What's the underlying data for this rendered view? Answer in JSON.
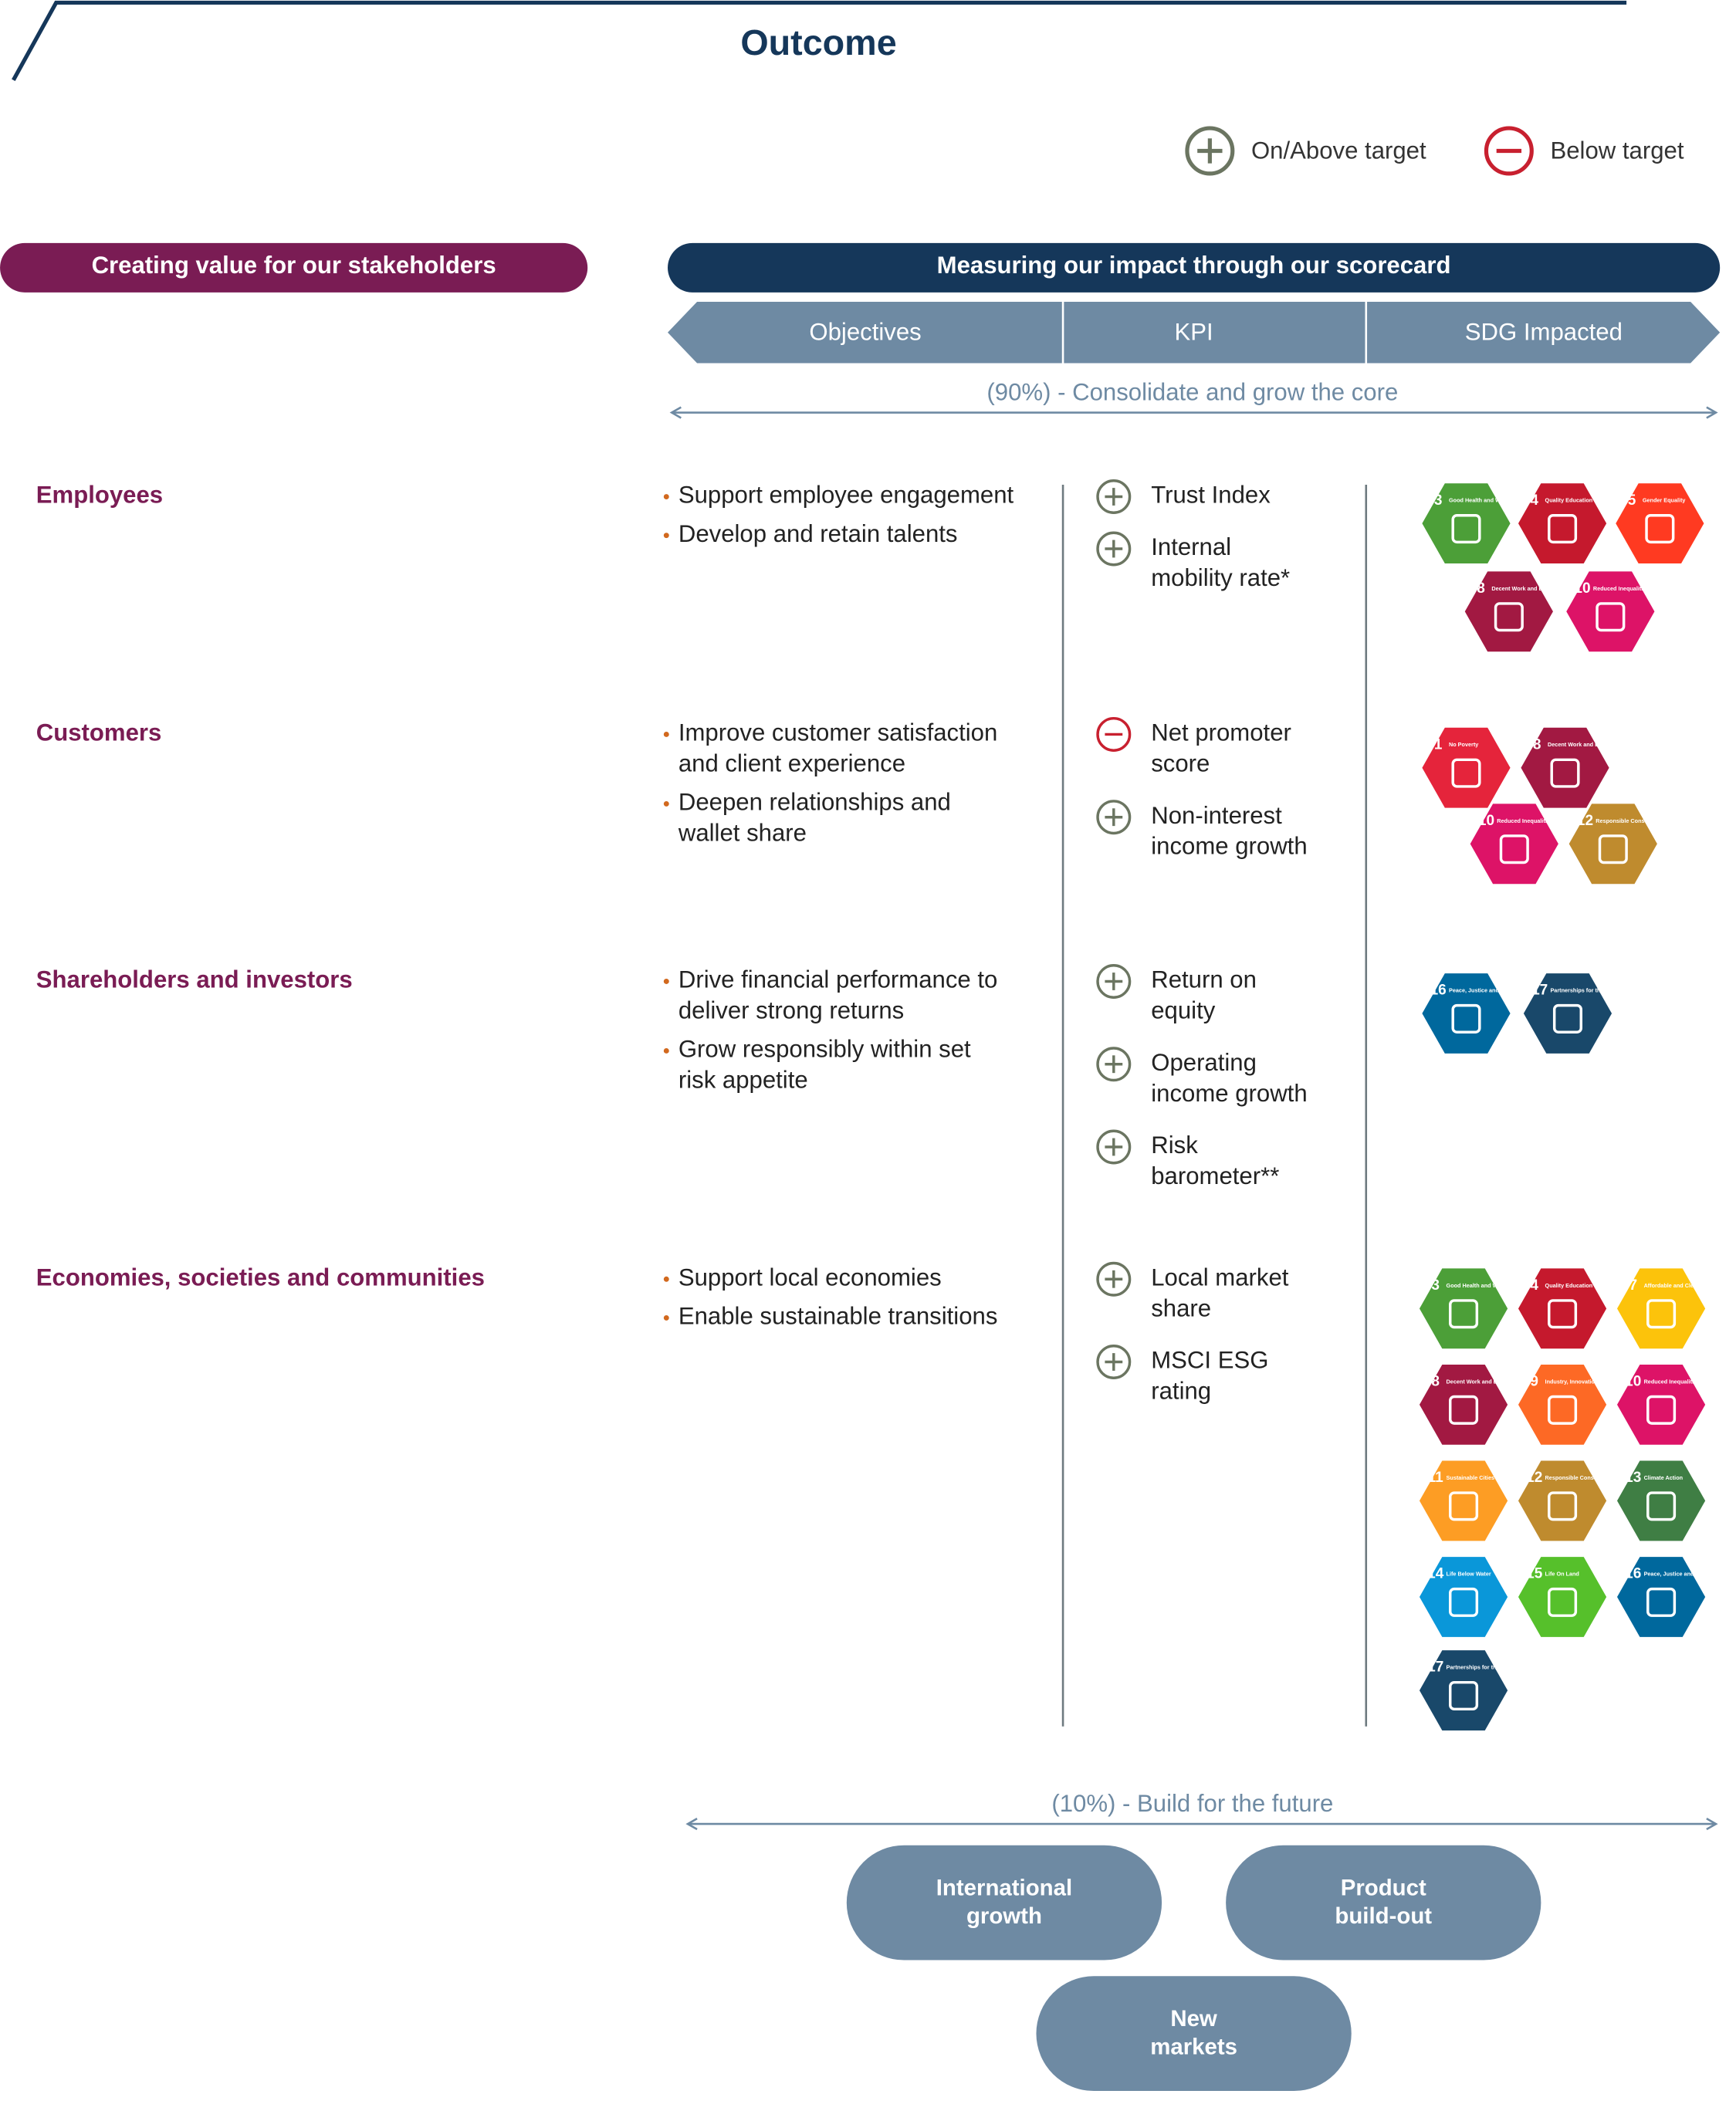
{
  "title": "Outcome",
  "legend": [
    {
      "label": "On/Above target",
      "status": "plus"
    },
    {
      "label": "Below target",
      "status": "minus"
    }
  ],
  "left_header": "Creating value for our stakeholders",
  "right_header": "Measuring our impact through our scorecard",
  "columns": [
    "Objectives",
    "KPI",
    "SDG Impacted"
  ],
  "core_label": "(90%) - Consolidate and grow the core",
  "stakeholders": [
    {
      "name": "Employees",
      "objectives": [
        [
          "Support employee engagement"
        ],
        [
          "Develop and retain talents"
        ]
      ],
      "kpis": [
        {
          "lines": [
            "Trust Index"
          ],
          "status": "plus"
        },
        {
          "lines": [
            "Internal",
            "mobility rate*"
          ],
          "status": "plus"
        }
      ],
      "sdgs": [
        {
          "number": 3,
          "name": "Good Health and Well-being",
          "color": "#4c9f38"
        },
        {
          "number": 4,
          "name": "Quality Education",
          "color": "#c5192d"
        },
        {
          "number": 5,
          "name": "Gender Equality",
          "color": "#ff3a21"
        },
        {
          "number": 8,
          "name": "Decent Work and Economic Growth",
          "color": "#a21942"
        },
        {
          "number": 10,
          "name": "Reduced Inequalities",
          "color": "#dd1367"
        }
      ]
    },
    {
      "name": "Customers",
      "objectives": [
        [
          "Improve customer satisfaction",
          "and client experience"
        ],
        [
          "Deepen relationships and",
          "wallet share"
        ]
      ],
      "kpis": [
        {
          "lines": [
            "Net promoter",
            "score"
          ],
          "status": "minus"
        },
        {
          "lines": [
            "Non-interest",
            "income growth"
          ],
          "status": "plus"
        }
      ],
      "sdgs": [
        {
          "number": 1,
          "name": "No Poverty",
          "color": "#e5243b"
        },
        {
          "number": 8,
          "name": "Decent Work and Economic Growth",
          "color": "#a21942"
        },
        {
          "number": 10,
          "name": "Reduced Inequalities",
          "color": "#dd1367"
        },
        {
          "number": 12,
          "name": "Responsible Consumption and Production",
          "color": "#bf8b2e"
        }
      ]
    },
    {
      "name": "Shareholders and investors",
      "objectives": [
        [
          "Drive financial performance to",
          "deliver strong returns"
        ],
        [
          "Grow responsibly within set",
          "risk appetite"
        ]
      ],
      "kpis": [
        {
          "lines": [
            "Return on",
            "equity"
          ],
          "status": "plus"
        },
        {
          "lines": [
            "Operating",
            "income growth"
          ],
          "status": "plus"
        },
        {
          "lines": [
            "Risk",
            "barometer**"
          ],
          "status": "plus"
        }
      ],
      "sdgs": [
        {
          "number": 16,
          "name": "Peace, Justice and Strong Institutions",
          "color": "#00689d"
        },
        {
          "number": 17,
          "name": "Partnerships for the Goals",
          "color": "#19486a"
        }
      ]
    },
    {
      "name": "Economies, societies and communities",
      "objectives": [
        [
          "Support local economies"
        ],
        [
          "Enable sustainable transitions"
        ]
      ],
      "kpis": [
        {
          "lines": [
            "Local market",
            "share"
          ],
          "status": "plus"
        },
        {
          "lines": [
            "MSCI ESG",
            "rating"
          ],
          "status": "plus"
        }
      ],
      "sdgs": [
        {
          "number": 3,
          "name": "Good Health and Well-being",
          "color": "#4c9f38"
        },
        {
          "number": 4,
          "name": "Quality Education",
          "color": "#c5192d"
        },
        {
          "number": 7,
          "name": "Affordable and Clean Energy",
          "color": "#fcc30b"
        },
        {
          "number": 8,
          "name": "Decent Work and Economic Growth",
          "color": "#a21942"
        },
        {
          "number": 9,
          "name": "Industry, Innovation and Infrastructure",
          "color": "#fd6925"
        },
        {
          "number": 10,
          "name": "Reduced Inequalities",
          "color": "#dd1367"
        },
        {
          "number": 11,
          "name": "Sustainable Cities and Communities",
          "color": "#fd9d24"
        },
        {
          "number": 12,
          "name": "Responsible Consumption and Production",
          "color": "#bf8b2e"
        },
        {
          "number": 13,
          "name": "Climate Action",
          "color": "#3f7e44"
        },
        {
          "number": 14,
          "name": "Life Below Water",
          "color": "#0a97d9"
        },
        {
          "number": 15,
          "name": "Life On Land",
          "color": "#56c02b"
        },
        {
          "number": 16,
          "name": "Peace, Justice and Strong Institutions",
          "color": "#00689d"
        },
        {
          "number": 17,
          "name": "Partnerships for the Goals",
          "color": "#19486a"
        }
      ]
    }
  ],
  "future_label": "(10%) - Build for the future",
  "future_items": [
    [
      "International",
      "growth"
    ],
    [
      "Product",
      "build-out"
    ],
    [
      "New",
      "markets"
    ]
  ]
}
